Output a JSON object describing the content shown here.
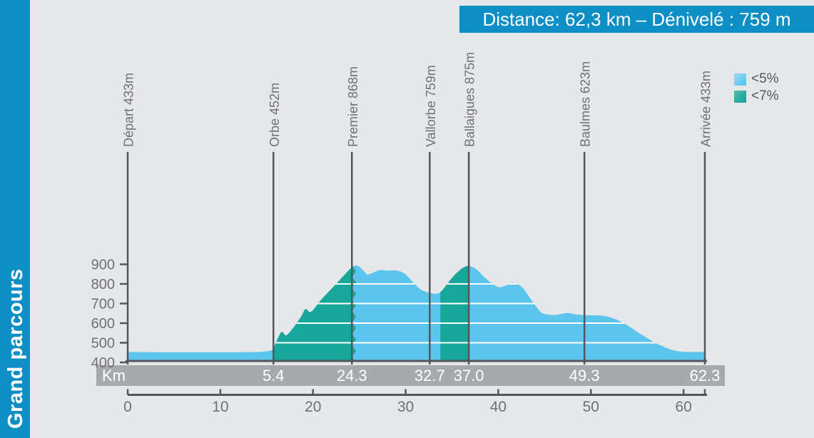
{
  "sidebar": {
    "title": "Grand parcours",
    "color": "#0d8fc6"
  },
  "banner": {
    "text": "Distance: 62,3 km – Dénivelé : 759 m",
    "color": "#0d8fc6"
  },
  "legend": {
    "items": [
      {
        "label": "<5%",
        "color": "#5cc5ee",
        "color_light": "#9adcf6"
      },
      {
        "label": "<7%",
        "color": "#17a79a",
        "color_light": "#56bcae"
      }
    ]
  },
  "chart_data": {
    "type": "area",
    "distance_km": 62.3,
    "denivele_m": 759,
    "x_axis": {
      "label": "Km",
      "ticks": [
        0,
        10,
        20,
        30,
        40,
        50,
        60
      ],
      "min": 0,
      "max": 62.3
    },
    "y_axis": {
      "unit": "m",
      "ticks": [
        400,
        500,
        600,
        700,
        800,
        900
      ],
      "min": 400,
      "max": 940,
      "gridlines_m": [
        500,
        600,
        700,
        800,
        900
      ]
    },
    "legend_position": "top-right",
    "grid": "white-lines-inside-area-only",
    "series": [
      {
        "name": "<5%",
        "color": "#5cc5ee"
      },
      {
        "name": "<7%",
        "color": "#17a79a"
      }
    ],
    "waypoints": [
      {
        "name": "Départ",
        "label": "Départ 433m",
        "elevation_m": 433,
        "km": 0,
        "km_label": null,
        "drawn_at_km": 0
      },
      {
        "name": "Orbe",
        "label": "Orbe 452m",
        "elevation_m": 452,
        "km": 5.4,
        "km_label": "5.4",
        "drawn_at_km": 15.73
      },
      {
        "name": "Premier",
        "label": "Premier 868m",
        "elevation_m": 868,
        "km": 24.3,
        "km_label": "24.3",
        "drawn_at_km": 24.2
      },
      {
        "name": "Vallorbe",
        "label": "Vallorbe 759m",
        "elevation_m": 759,
        "km": 32.7,
        "km_label": "32.7",
        "drawn_at_km": 32.6
      },
      {
        "name": "Ballaigues",
        "label": "Ballaigues 875m",
        "elevation_m": 875,
        "km": 37.0,
        "km_label": "37.0",
        "drawn_at_km": 36.82
      },
      {
        "name": "Baulmes",
        "label": "Baulmes 623m",
        "elevation_m": 623,
        "km": 49.3,
        "km_label": "49.3",
        "drawn_at_km": 49.3
      },
      {
        "name": "Arrivée",
        "label": "Arrivée 433m",
        "elevation_m": 433,
        "km": 62.3,
        "km_label": "62.3",
        "drawn_at_km": 62.3
      }
    ],
    "steep_segments_km": [
      [
        15.73,
        24.5
      ],
      [
        33.75,
        36.81
      ]
    ],
    "profile_points": [
      [
        0,
        453
      ],
      [
        3,
        452
      ],
      [
        6,
        452
      ],
      [
        9,
        452
      ],
      [
        12,
        452
      ],
      [
        13.8,
        453
      ],
      [
        14.9,
        456
      ],
      [
        15.5,
        462
      ],
      [
        15.73,
        473
      ],
      [
        16.3,
        532
      ],
      [
        16.65,
        556
      ],
      [
        17.1,
        538
      ],
      [
        17.7,
        566
      ],
      [
        18.3,
        604
      ],
      [
        18.8,
        640
      ],
      [
        19.2,
        672
      ],
      [
        19.8,
        658
      ],
      [
        20.9,
        720
      ],
      [
        22.0,
        775
      ],
      [
        23.2,
        836
      ],
      [
        24.2,
        884
      ],
      [
        24.8,
        893
      ],
      [
        25.4,
        870
      ],
      [
        25.9,
        848
      ],
      [
        26.6,
        860
      ],
      [
        27.2,
        870
      ],
      [
        28.2,
        868
      ],
      [
        29.0,
        868
      ],
      [
        29.8,
        855
      ],
      [
        30.4,
        829
      ],
      [
        31.5,
        776
      ],
      [
        32.4,
        757
      ],
      [
        33.2,
        750
      ],
      [
        33.75,
        758
      ],
      [
        34.5,
        800
      ],
      [
        35.1,
        836
      ],
      [
        36.0,
        876
      ],
      [
        36.7,
        892
      ],
      [
        37.3,
        884
      ],
      [
        37.8,
        868
      ],
      [
        38.6,
        830
      ],
      [
        39.4,
        800
      ],
      [
        40.1,
        783
      ],
      [
        40.9,
        793
      ],
      [
        41.6,
        806
      ],
      [
        42.3,
        793
      ],
      [
        42.9,
        764
      ],
      [
        43.8,
        703
      ],
      [
        44.6,
        656
      ],
      [
        45.3,
        645
      ],
      [
        46.2,
        642
      ],
      [
        47.4,
        652
      ],
      [
        48.3,
        645
      ],
      [
        49.3,
        641
      ],
      [
        50.5,
        640
      ],
      [
        51.3,
        638
      ],
      [
        52.2,
        628
      ],
      [
        53.1,
        611
      ],
      [
        54.2,
        582
      ],
      [
        55.2,
        549
      ],
      [
        56.2,
        521
      ],
      [
        57.1,
        496
      ],
      [
        58.0,
        477
      ],
      [
        58.8,
        463
      ],
      [
        59.6,
        456
      ],
      [
        60.5,
        453
      ],
      [
        62.3,
        453
      ]
    ]
  }
}
